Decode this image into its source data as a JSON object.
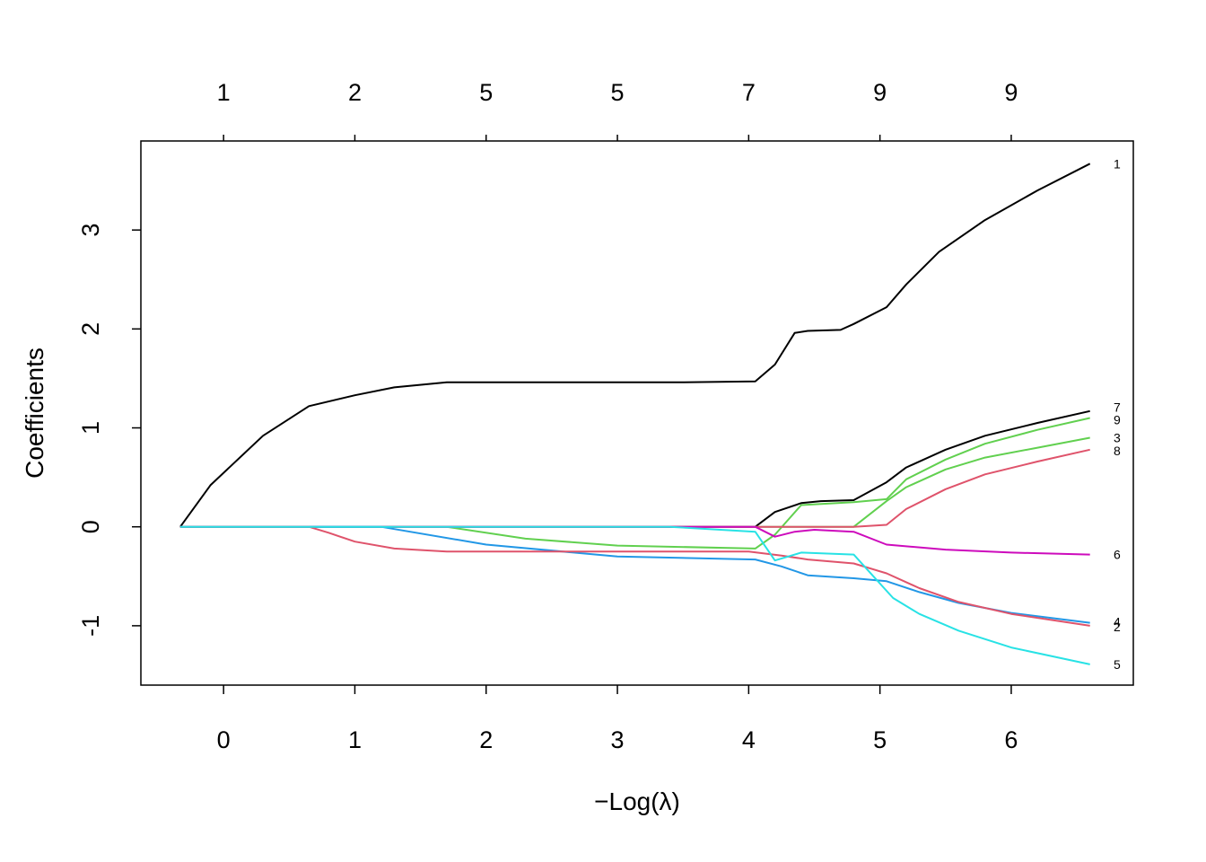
{
  "chart_data": {
    "type": "line",
    "xlabel": "−Log(λ)",
    "ylabel": "Coefficients",
    "xlim": [
      -0.63,
      6.93
    ],
    "ylim": [
      -1.6,
      3.9
    ],
    "x_ticks": [
      "0",
      "1",
      "2",
      "3",
      "4",
      "5",
      "6"
    ],
    "y_ticks": [
      "-1",
      "0",
      "1",
      "2",
      "3"
    ],
    "top_axis": {
      "positions": [
        0,
        1,
        2,
        3,
        4,
        5,
        6
      ],
      "labels": [
        "1",
        "2",
        "5",
        "5",
        "7",
        "9",
        "9"
      ]
    },
    "grid": false,
    "series": [
      {
        "name": "1",
        "color": "#000000",
        "x": [
          -0.33,
          -0.1,
          0.3,
          0.65,
          1.0,
          1.3,
          1.7,
          2.5,
          3.5,
          4.05,
          4.2,
          4.35,
          4.45,
          4.7,
          4.8,
          5.05,
          5.2,
          5.45,
          5.8,
          6.2,
          6.6
        ],
        "y": [
          0.0,
          0.42,
          0.92,
          1.22,
          1.33,
          1.41,
          1.46,
          1.46,
          1.46,
          1.47,
          1.64,
          1.96,
          1.98,
          1.99,
          2.05,
          2.22,
          2.45,
          2.78,
          3.1,
          3.4,
          3.67
        ]
      },
      {
        "name": "7",
        "color": "#000000",
        "x": [
          -0.33,
          1.7,
          4.05,
          4.2,
          4.4,
          4.55,
          4.8,
          5.05,
          5.2,
          5.5,
          5.8,
          6.2,
          6.6
        ],
        "y": [
          0.0,
          0.0,
          0.0,
          0.15,
          0.24,
          0.26,
          0.27,
          0.45,
          0.6,
          0.78,
          0.92,
          1.05,
          1.17
        ]
      },
      {
        "name": "9",
        "color": "#61D04F",
        "x": [
          -0.33,
          1.7,
          2.3,
          3.0,
          4.05,
          4.2,
          4.4,
          4.8,
          5.05,
          5.2,
          5.5,
          5.8,
          6.2,
          6.6
        ],
        "y": [
          0.0,
          0.0,
          -0.12,
          -0.19,
          -0.22,
          -0.08,
          0.22,
          0.25,
          0.28,
          0.48,
          0.68,
          0.84,
          0.98,
          1.1
        ]
      },
      {
        "name": "3",
        "color": "#61D04F",
        "x": [
          -0.33,
          4.05,
          4.3,
          4.8,
          5.05,
          5.2,
          5.5,
          5.8,
          6.2,
          6.6
        ],
        "y": [
          0.0,
          0.0,
          0.0,
          0.0,
          0.26,
          0.4,
          0.58,
          0.7,
          0.8,
          0.9
        ]
      },
      {
        "name": "8",
        "color": "#DF536B",
        "x": [
          -0.33,
          4.05,
          4.3,
          4.8,
          5.05,
          5.2,
          5.5,
          5.8,
          6.2,
          6.6
        ],
        "y": [
          0.0,
          0.0,
          0.0,
          0.0,
          0.02,
          0.18,
          0.38,
          0.53,
          0.66,
          0.78
        ]
      },
      {
        "name": "6",
        "color": "#CD0BBC",
        "x": [
          -0.33,
          4.05,
          4.2,
          4.35,
          4.5,
          4.8,
          5.05,
          5.5,
          6.0,
          6.6
        ],
        "y": [
          0.0,
          0.0,
          -0.1,
          -0.05,
          -0.03,
          -0.05,
          -0.18,
          -0.23,
          -0.26,
          -0.28
        ]
      },
      {
        "name": "4",
        "color": "#2297E6",
        "x": [
          -0.33,
          1.2,
          2.0,
          3.0,
          4.05,
          4.25,
          4.45,
          4.8,
          5.05,
          5.3,
          5.6,
          6.0,
          6.6
        ],
        "y": [
          0.0,
          0.0,
          -0.18,
          -0.3,
          -0.33,
          -0.4,
          -0.49,
          -0.52,
          -0.55,
          -0.66,
          -0.77,
          -0.87,
          -0.97
        ]
      },
      {
        "name": "2",
        "color": "#DF536B",
        "x": [
          -0.33,
          0.65,
          0.8,
          1.0,
          1.3,
          1.7,
          4.0,
          4.25,
          4.45,
          4.8,
          5.05,
          5.3,
          5.6,
          6.0,
          6.6
        ],
        "y": [
          0.0,
          0.0,
          -0.06,
          -0.15,
          -0.22,
          -0.25,
          -0.25,
          -0.29,
          -0.33,
          -0.37,
          -0.47,
          -0.62,
          -0.76,
          -0.88,
          -1.0
        ]
      },
      {
        "name": "5",
        "color": "#28E2E5",
        "x": [
          -0.33,
          3.4,
          4.05,
          4.2,
          4.4,
          4.8,
          4.95,
          5.1,
          5.3,
          5.6,
          6.0,
          6.6
        ],
        "y": [
          0.0,
          0.0,
          -0.05,
          -0.34,
          -0.26,
          -0.28,
          -0.5,
          -0.72,
          -0.88,
          -1.05,
          -1.22,
          -1.39
        ]
      }
    ],
    "line_labels": [
      {
        "text": "1",
        "y": 3.67
      },
      {
        "text": "7",
        "y": 1.21
      },
      {
        "text": "9",
        "y": 1.08
      },
      {
        "text": "3",
        "y": 0.9
      },
      {
        "text": "8",
        "y": 0.77
      },
      {
        "text": "6",
        "y": -0.28
      },
      {
        "text": "4",
        "y": -0.96
      },
      {
        "text": "2",
        "y": -1.01
      },
      {
        "text": "5",
        "y": -1.39
      }
    ]
  }
}
